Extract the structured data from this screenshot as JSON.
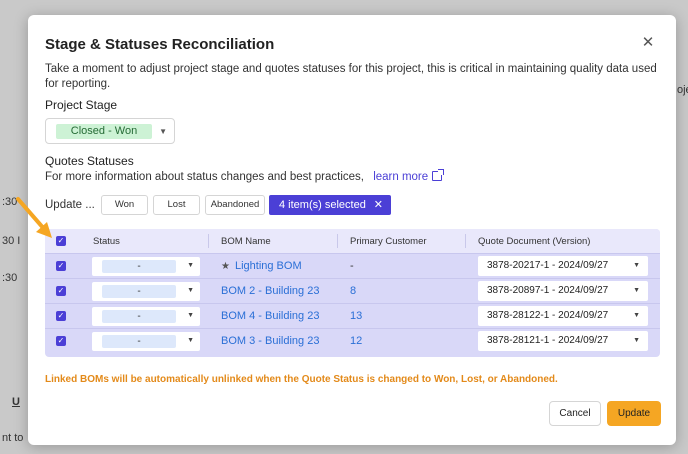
{
  "background": {
    "fragments": [
      ":30",
      "30 I",
      ":30",
      "U",
      "nt to",
      "oje"
    ]
  },
  "modal": {
    "title": "Stage & Statuses Reconciliation",
    "close_icon": "close-icon",
    "description": "Take a moment to adjust project stage and quotes statuses for this project, this is critical in maintaining quality data used for reporting.",
    "project_stage": {
      "label": "Project Stage",
      "value": "Closed - Won",
      "value_color": "#cdf2d5"
    },
    "quotes_statuses": {
      "label": "Quotes Statuses",
      "info_text": "For more information about status changes and best practices,",
      "learn_more": "learn more",
      "link_icon": "external-link-icon"
    },
    "bulk_update": {
      "label": "Update ...",
      "buttons": [
        "Won",
        "Lost",
        "Abandoned"
      ],
      "selection": "4 item(s) selected",
      "clear_icon": "close-icon"
    },
    "table": {
      "columns": [
        "Status",
        "BOM Name",
        "Primary Customer",
        "Quote Document (Version)"
      ],
      "rows": [
        {
          "status": "-",
          "bom_name": "Lighting BOM",
          "starred": true,
          "customer": "-",
          "quote": "3878-20217-1 - 2024/09/27"
        },
        {
          "status": "-",
          "bom_name": "BOM 2 - Building 23",
          "starred": false,
          "customer": "8",
          "quote": "3878-20897-1 - 2024/09/27"
        },
        {
          "status": "-",
          "bom_name": "BOM 4 - Building 23",
          "starred": false,
          "customer": "13",
          "quote": "3878-28122-1 - 2024/09/27"
        },
        {
          "status": "-",
          "bom_name": "BOM 3 - Building 23",
          "starred": false,
          "customer": "12",
          "quote": "3878-28121-1 - 2024/09/27"
        }
      ]
    },
    "warning": "Linked BOMs will be automatically unlinked when the Quote Status is changed to Won, Lost, or Abandoned.",
    "footer": {
      "cancel": "Cancel",
      "update": "Update"
    },
    "accent_color": "#4b3fd6",
    "warning_color": "#e38a1a",
    "primary_button_color": "#f5a623"
  }
}
